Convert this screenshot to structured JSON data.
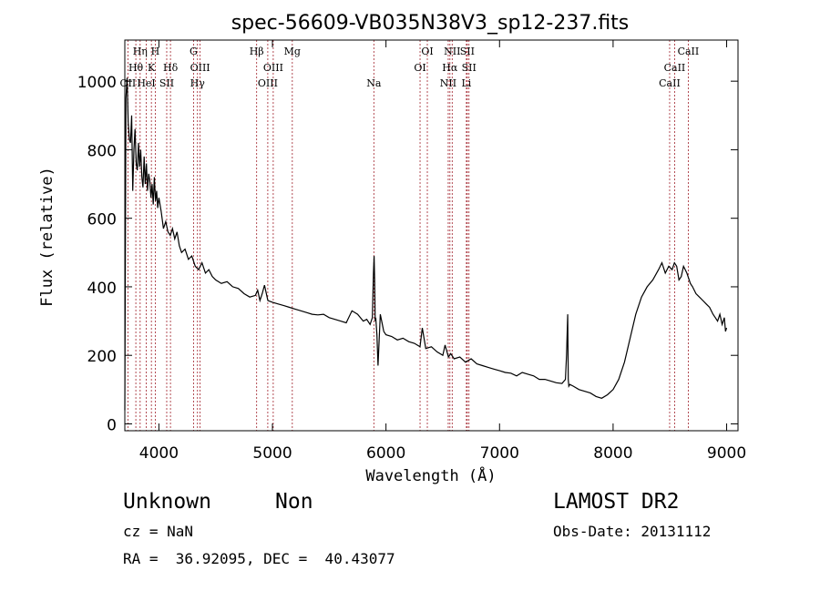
{
  "chart_data": {
    "type": "line",
    "title": "spec-56609-VB035N38V3_sp12-237.fits",
    "xlabel": "Wavelength (Å)",
    "ylabel": "Flux (relative)",
    "xlim": [
      3700,
      9100
    ],
    "ylim": [
      -20,
      1120
    ],
    "xticks": [
      4000,
      5000,
      6000,
      7000,
      8000,
      9000
    ],
    "yticks": [
      0,
      200,
      400,
      600,
      800,
      1000
    ],
    "series": [
      {
        "x": [
          3700,
          3710,
          3720,
          3730,
          3740,
          3750,
          3760,
          3770,
          3780,
          3790,
          3800,
          3810,
          3820,
          3830,
          3840,
          3850,
          3860,
          3870,
          3880,
          3890,
          3900,
          3910,
          3920,
          3930,
          3940,
          3950,
          3960,
          3970,
          3980,
          3990,
          4000,
          4020,
          4040,
          4060,
          4080,
          4100,
          4120,
          4140,
          4160,
          4180,
          4200,
          4230,
          4260,
          4290,
          4320,
          4350,
          4380,
          4410,
          4440,
          4470,
          4500,
          4550,
          4600,
          4650,
          4700,
          4750,
          4800,
          4850,
          4870,
          4890,
          4910,
          4930,
          4960,
          5000,
          5050,
          5100,
          5150,
          5200,
          5250,
          5300,
          5350,
          5400,
          5450,
          5500,
          5550,
          5600,
          5650,
          5700,
          5750,
          5800,
          5830,
          5860,
          5880,
          5890,
          5895,
          5900,
          5905,
          5910,
          5920,
          5930,
          5950,
          5980,
          6000,
          6050,
          6100,
          6150,
          6200,
          6250,
          6300,
          6320,
          6350,
          6400,
          6450,
          6500,
          6520,
          6550,
          6570,
          6600,
          6650,
          6700,
          6750,
          6800,
          6850,
          6900,
          6950,
          7000,
          7050,
          7100,
          7150,
          7200,
          7250,
          7300,
          7350,
          7400,
          7450,
          7500,
          7550,
          7580,
          7590,
          7600,
          7605,
          7610,
          7620,
          7650,
          7700,
          7750,
          7800,
          7850,
          7900,
          7950,
          8000,
          8050,
          8100,
          8150,
          8200,
          8250,
          8300,
          8350,
          8400,
          8430,
          8460,
          8490,
          8520,
          8540,
          8560,
          8580,
          8600,
          8620,
          8650,
          8680,
          8700,
          8730,
          8760,
          8790,
          8820,
          8850,
          8880,
          8900,
          8920,
          8940,
          8960,
          8980,
          8990,
          9000
        ],
        "y": [
          40,
          950,
          1010,
          880,
          830,
          820,
          900,
          680,
          800,
          860,
          760,
          740,
          820,
          750,
          800,
          720,
          690,
          780,
          700,
          760,
          680,
          730,
          710,
          660,
          700,
          640,
          720,
          650,
          680,
          630,
          660,
          620,
          570,
          590,
          560,
          550,
          570,
          540,
          560,
          520,
          500,
          510,
          480,
          490,
          460,
          450,
          470,
          440,
          450,
          430,
          420,
          410,
          415,
          400,
          395,
          380,
          370,
          375,
          390,
          360,
          380,
          405,
          360,
          355,
          350,
          345,
          340,
          335,
          330,
          325,
          320,
          318,
          320,
          310,
          305,
          300,
          295,
          330,
          320,
          300,
          305,
          290,
          310,
          440,
          490,
          420,
          300,
          310,
          260,
          170,
          320,
          270,
          260,
          255,
          245,
          250,
          240,
          235,
          225,
          280,
          220,
          225,
          210,
          200,
          230,
          195,
          205,
          190,
          195,
          180,
          190,
          175,
          170,
          165,
          160,
          155,
          150,
          148,
          140,
          150,
          145,
          140,
          130,
          130,
          125,
          120,
          118,
          130,
          200,
          320,
          130,
          110,
          115,
          110,
          100,
          95,
          90,
          80,
          75,
          85,
          100,
          130,
          180,
          250,
          320,
          370,
          400,
          420,
          450,
          470,
          440,
          460,
          450,
          470,
          460,
          420,
          430,
          460,
          440,
          410,
          400,
          380,
          370,
          360,
          350,
          340,
          320,
          310,
          300,
          320,
          290,
          310,
          270,
          280
        ]
      }
    ],
    "lines": [
      {
        "label": "Hη",
        "x": 3835,
        "row": 0
      },
      {
        "label": "H",
        "x": 3968,
        "row": 0
      },
      {
        "label": "Hθ",
        "x": 3797,
        "row": 1
      },
      {
        "label": "K",
        "x": 3934,
        "row": 1
      },
      {
        "label": "Hδ",
        "x": 4102,
        "row": 1
      },
      {
        "label": "OII",
        "x": 3727,
        "row": 2
      },
      {
        "label": "HeI",
        "x": 3889,
        "row": 2
      },
      {
        "label": "SII",
        "x": 4069,
        "row": 2
      },
      {
        "label": "G",
        "x": 4305,
        "row": 0
      },
      {
        "label": "OIII",
        "x": 4363,
        "row": 1
      },
      {
        "label": "Hγ",
        "x": 4340,
        "row": 2
      },
      {
        "label": "Hβ",
        "x": 4861,
        "row": 0
      },
      {
        "label": "OIII",
        "x": 5007,
        "row": 1
      },
      {
        "label": "OIII",
        "x": 4959,
        "row": 2
      },
      {
        "label": "Mg",
        "x": 5175,
        "row": 0
      },
      {
        "label": "Na",
        "x": 5893,
        "row": 2
      },
      {
        "label": "OI",
        "x": 6364,
        "row": 0
      },
      {
        "label": "OI",
        "x": 6300,
        "row": 1
      },
      {
        "label": "NII",
        "x": 6583,
        "row": 0
      },
      {
        "label": "SII",
        "x": 6716,
        "row": 0
      },
      {
        "label": "Hα",
        "x": 6563,
        "row": 1
      },
      {
        "label": "SII",
        "x": 6731,
        "row": 1
      },
      {
        "label": "NII",
        "x": 6548,
        "row": 2
      },
      {
        "label": "Li",
        "x": 6708,
        "row": 2
      },
      {
        "label": "CaII",
        "x": 8662,
        "row": 0
      },
      {
        "label": "CaII",
        "x": 8542,
        "row": 1
      },
      {
        "label": "CaII",
        "x": 8498,
        "row": 2
      }
    ]
  },
  "info": {
    "object_class": "Unknown",
    "subclass": "Non",
    "survey": "LAMOST DR2",
    "cz": "cz = NaN",
    "obs_date": "Obs-Date: 20131112",
    "coords": "RA =  36.92095, DEC =  40.43077"
  }
}
